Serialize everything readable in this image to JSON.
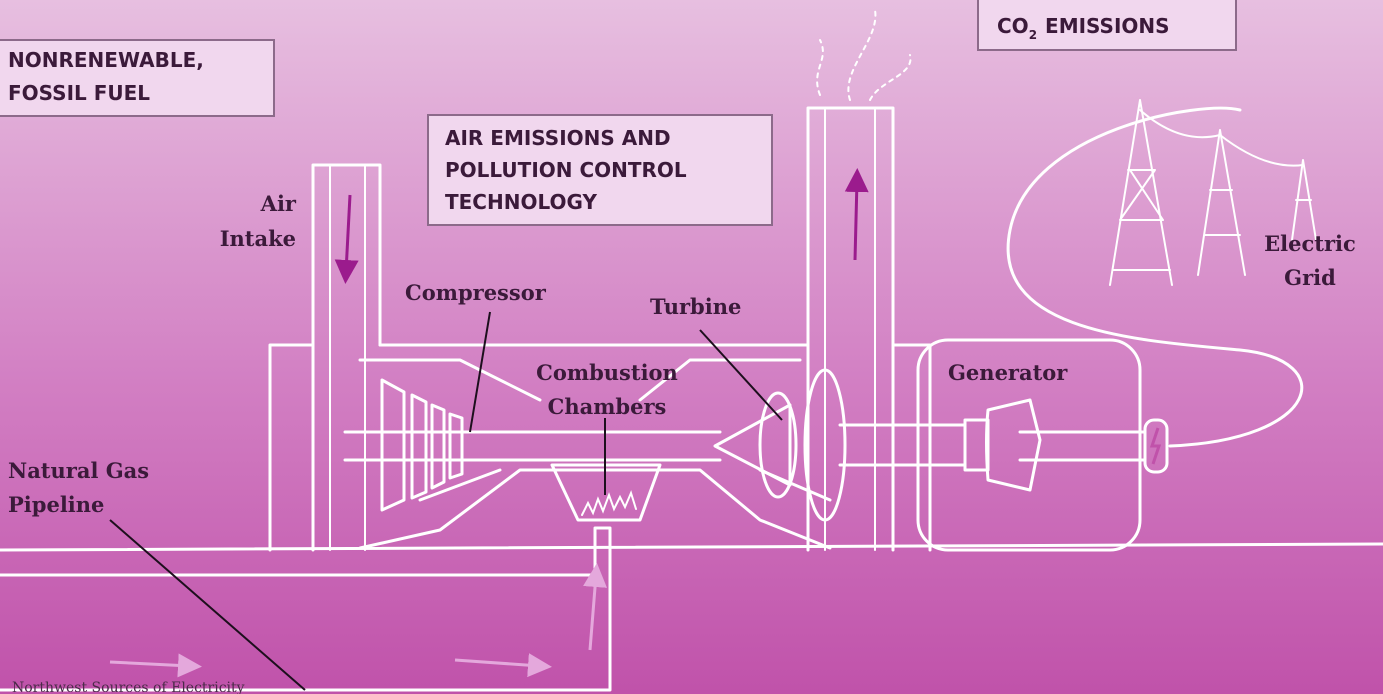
{
  "boxes": {
    "fuel": {
      "lines": [
        "NONRENEWABLE,",
        "FOSSIL FUEL"
      ]
    },
    "co2": {
      "prefix": "CO",
      "subscript": "2",
      "suffix": "EMISSIONS"
    },
    "air": {
      "lines": [
        "AIR EMISSIONS  AND",
        "POLLUTION CONTROL",
        "TECHNOLOGY"
      ]
    }
  },
  "labels": {
    "air_intake": [
      "Air",
      "Intake"
    ],
    "compressor": "Compressor",
    "turbine": "Turbine",
    "combustion": [
      "Combustion",
      "Chambers"
    ],
    "generator": "Generator",
    "grid": [
      "Electric",
      "Grid"
    ],
    "pipeline": [
      "Natural Gas",
      "Pipeline"
    ]
  },
  "footer": "Northwest Sources of Electricity"
}
